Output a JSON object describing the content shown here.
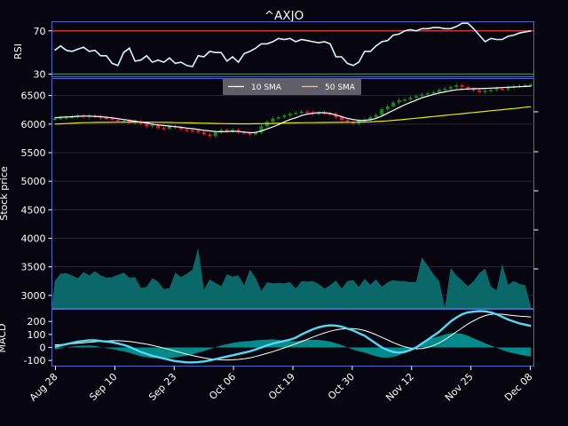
{
  "chart_data": {
    "type": "line",
    "title": "^AXJO",
    "x_tick_labels": [
      "Aug 28",
      "Sep 10",
      "Sep 23",
      "Oct 06",
      "Oct 19",
      "Oct 30",
      "Nov 12",
      "Nov 25",
      "Dec 08"
    ],
    "rsi_panel": {
      "ylabel": "RSI",
      "yticks": [
        30,
        70
      ],
      "ylim": [
        28,
        78
      ],
      "overbought": 70,
      "oversold": 30,
      "values": [
        52,
        56,
        52,
        51,
        53,
        55,
        51,
        52,
        47,
        47,
        40,
        38,
        50,
        54,
        42,
        43,
        47,
        41,
        43,
        41,
        45,
        40,
        41,
        38,
        37,
        47,
        46,
        51,
        50,
        50,
        42,
        46,
        41,
        49,
        51,
        54,
        58,
        58,
        60,
        63,
        62,
        63,
        60,
        62,
        61,
        60,
        59,
        60,
        58,
        46,
        46,
        40,
        38,
        41,
        51,
        51,
        56,
        60,
        61,
        66,
        67,
        70,
        71,
        70,
        72,
        72,
        73,
        73,
        72,
        72,
        74,
        77,
        77,
        72,
        66,
        60,
        63,
        62,
        62,
        65,
        66,
        68,
        69,
        70
      ]
    },
    "price_panel": {
      "ylabel": "Stock price",
      "yticks": [
        3000,
        3500,
        4000,
        4500,
        5000,
        5500,
        6000,
        6500
      ],
      "ylim": [
        2780,
        6790
      ],
      "legend": [
        {
          "name": "10 SMA",
          "color": "#ffffff"
        },
        {
          "name": "50 SMA",
          "color": "#e8e800"
        }
      ],
      "up_color": "#0f8a1f",
      "down_color": "#e8182c",
      "close": [
        6100,
        6110,
        6120,
        6130,
        6150,
        6130,
        6145,
        6140,
        6110,
        6100,
        6080,
        6050,
        6060,
        6020,
        6050,
        6010,
        5960,
        5990,
        5930,
        5920,
        5960,
        5940,
        5910,
        5890,
        5880,
        5860,
        5820,
        5790,
        5860,
        5900,
        5880,
        5900,
        5860,
        5840,
        5820,
        5850,
        5960,
        6040,
        6100,
        6120,
        6150,
        6180,
        6200,
        6220,
        6210,
        6180,
        6200,
        6190,
        6170,
        6120,
        6070,
        6040,
        6010,
        6060,
        6080,
        6120,
        6160,
        6260,
        6310,
        6380,
        6420,
        6430,
        6460,
        6490,
        6520,
        6540,
        6560,
        6600,
        6620,
        6650,
        6680,
        6650,
        6610,
        6590,
        6560,
        6580,
        6600,
        6620,
        6610,
        6640,
        6660,
        6670,
        6680,
        6690
      ],
      "sma10": [
        6110,
        6120,
        6125,
        6130,
        6135,
        6140,
        6140,
        6135,
        6130,
        6120,
        6110,
        6095,
        6080,
        6065,
        6050,
        6035,
        6020,
        6000,
        5985,
        5975,
        5965,
        5955,
        5945,
        5930,
        5920,
        5905,
        5890,
        5880,
        5870,
        5865,
        5870,
        5875,
        5870,
        5860,
        5850,
        5855,
        5880,
        5915,
        5950,
        5990,
        6040,
        6080,
        6110,
        6150,
        6175,
        6190,
        6200,
        6200,
        6185,
        6160,
        6130,
        6100,
        6080,
        6065,
        6065,
        6075,
        6100,
        6140,
        6190,
        6240,
        6290,
        6340,
        6380,
        6420,
        6460,
        6490,
        6520,
        6545,
        6565,
        6585,
        6600,
        6610,
        6615,
        6620,
        6620,
        6625,
        6630,
        6635,
        6640,
        6645,
        6650,
        6655,
        6660,
        6665
      ],
      "sma50": [
        6000,
        6005,
        6010,
        6015,
        6020,
        6025,
        6025,
        6028,
        6030,
        6030,
        6032,
        6033,
        6033,
        6034,
        6035,
        6035,
        6034,
        6033,
        6032,
        6030,
        6028,
        6026,
        6024,
        6022,
        6020,
        6018,
        6016,
        6014,
        6012,
        6010,
        6008,
        6006,
        6005,
        6005,
        6005,
        6006,
        6008,
        6010,
        6012,
        6015,
        6018,
        6020,
        6022,
        6024,
        6025,
        6026,
        6027,
        6028,
        6029,
        6030,
        6030,
        6031,
        6032,
        6034,
        6036,
        6040,
        6045,
        6050,
        6057,
        6065,
        6074,
        6083,
        6093,
        6103,
        6113,
        6123,
        6133,
        6143,
        6153,
        6163,
        6173,
        6183,
        6193,
        6203,
        6213,
        6223,
        6233,
        6243,
        6253,
        6263,
        6273,
        6283,
        6295,
        6305
      ],
      "volume_area": [
        3250,
        3380,
        3390,
        3350,
        3300,
        3410,
        3350,
        3420,
        3350,
        3310,
        3320,
        3360,
        3400,
        3310,
        3320,
        3130,
        3150,
        3300,
        3240,
        3110,
        3130,
        3400,
        3320,
        3380,
        3450,
        3830,
        3100,
        3280,
        3220,
        3160,
        3370,
        3330,
        3350,
        3180,
        3450,
        3310,
        3080,
        3230,
        3210,
        3220,
        3210,
        3230,
        3120,
        3250,
        3240,
        3250,
        3200,
        3120,
        3180,
        3260,
        3120,
        3250,
        3270,
        3150,
        3290,
        3190,
        3280,
        3150,
        3230,
        3270,
        3250,
        3250,
        3230,
        3240,
        3670,
        3520,
        3370,
        3250,
        2790,
        3480,
        3350,
        3260,
        3160,
        3250,
        3390,
        3470,
        3160,
        3090,
        3550,
        3190,
        3250,
        3200,
        3180,
        2790
      ]
    },
    "macd_panel": {
      "ylabel": "MACD",
      "yticks": [
        -100,
        0,
        100,
        200
      ],
      "ylim": [
        -140,
        290
      ],
      "macd": [
        5,
        15,
        25,
        35,
        45,
        50,
        55,
        55,
        50,
        45,
        40,
        30,
        20,
        5,
        -15,
        -35,
        -50,
        -65,
        -75,
        -85,
        -95,
        -105,
        -110,
        -115,
        -115,
        -112,
        -108,
        -100,
        -90,
        -80,
        -70,
        -60,
        -50,
        -40,
        -30,
        -15,
        0,
        15,
        30,
        40,
        50,
        60,
        75,
        100,
        120,
        140,
        155,
        165,
        170,
        168,
        160,
        145,
        130,
        110,
        90,
        60,
        30,
        0,
        -20,
        -35,
        -40,
        -35,
        -20,
        0,
        30,
        60,
        90,
        120,
        160,
        200,
        230,
        255,
        270,
        275,
        280,
        278,
        270,
        255,
        235,
        215,
        200,
        185,
        175,
        165
      ],
      "signal": [
        20,
        22,
        25,
        28,
        32,
        36,
        40,
        44,
        47,
        50,
        52,
        52,
        50,
        46,
        40,
        33,
        25,
        16,
        6,
        -5,
        -16,
        -28,
        -40,
        -52,
        -62,
        -72,
        -80,
        -87,
        -92,
        -95,
        -96,
        -95,
        -92,
        -87,
        -80,
        -70,
        -58,
        -45,
        -32,
        -18,
        -3,
        12,
        28,
        45,
        62,
        80,
        97,
        112,
        125,
        135,
        142,
        145,
        145,
        140,
        130,
        115,
        98,
        78,
        58,
        38,
        20,
        5,
        -5,
        -10,
        -8,
        0,
        15,
        35,
        60,
        90,
        120,
        150,
        180,
        205,
        228,
        245,
        255,
        258,
        255,
        250,
        245,
        240,
        238,
        235
      ],
      "histogram_color": "#008b8b",
      "macd_color": "#55d8f2",
      "signal_color": "#ffffff"
    }
  }
}
